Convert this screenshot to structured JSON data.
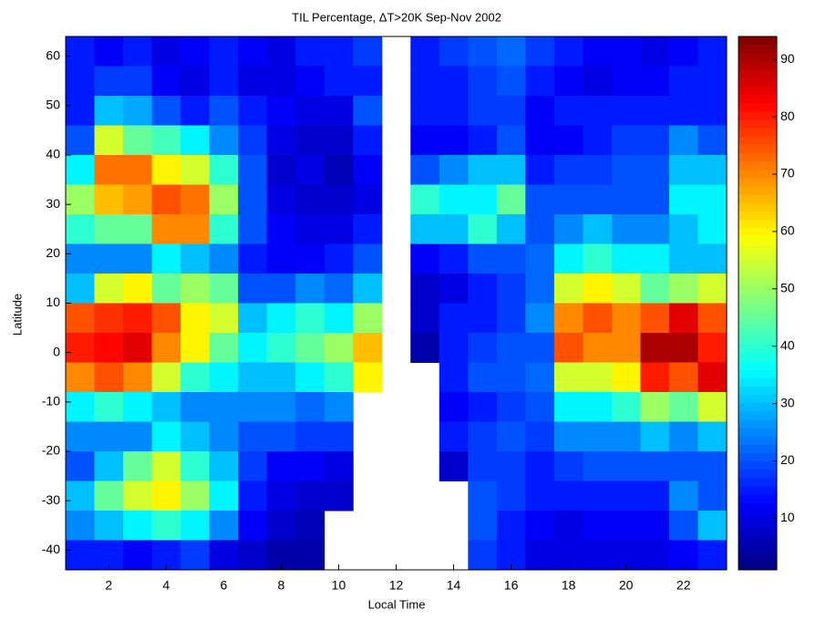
{
  "chart_data": {
    "type": "heatmap",
    "title": "TIL Percentage, ΔT>20K Sep-Nov 2002",
    "xlabel": "Local Time",
    "ylabel": "Latitude",
    "x": [
      1,
      2,
      3,
      4,
      5,
      6,
      7,
      8,
      9,
      10,
      11,
      12,
      13,
      14,
      15,
      16,
      17,
      18,
      19,
      20,
      21,
      22,
      23
    ],
    "y": [
      61,
      55,
      49,
      43,
      37,
      31,
      25,
      19,
      13,
      7,
      1,
      -5,
      -11,
      -17,
      -23,
      -29,
      -35,
      -41
    ],
    "z": [
      [
        15,
        12,
        15,
        10,
        12,
        15,
        12,
        10,
        15,
        15,
        18,
        null,
        15,
        18,
        20,
        22,
        18,
        15,
        12,
        12,
        10,
        12,
        15
      ],
      [
        15,
        18,
        18,
        12,
        10,
        15,
        10,
        10,
        12,
        15,
        15,
        null,
        15,
        15,
        18,
        20,
        15,
        12,
        10,
        12,
        12,
        15,
        15
      ],
      [
        15,
        30,
        28,
        20,
        15,
        20,
        15,
        12,
        10,
        10,
        20,
        null,
        15,
        15,
        18,
        18,
        12,
        15,
        15,
        15,
        15,
        15,
        15
      ],
      [
        20,
        55,
        45,
        42,
        35,
        25,
        18,
        10,
        8,
        8,
        15,
        null,
        12,
        12,
        15,
        20,
        12,
        12,
        15,
        18,
        18,
        25,
        20
      ],
      [
        35,
        72,
        72,
        60,
        55,
        40,
        20,
        8,
        10,
        6,
        12,
        null,
        20,
        25,
        30,
        30,
        15,
        18,
        18,
        20,
        20,
        30,
        30
      ],
      [
        50,
        65,
        68,
        75,
        72,
        50,
        20,
        10,
        8,
        8,
        10,
        null,
        40,
        35,
        35,
        45,
        20,
        20,
        20,
        20,
        20,
        35,
        35
      ],
      [
        40,
        45,
        45,
        70,
        70,
        40,
        20,
        12,
        10,
        10,
        15,
        null,
        30,
        30,
        40,
        30,
        20,
        25,
        30,
        25,
        25,
        30,
        35
      ],
      [
        25,
        25,
        25,
        35,
        30,
        25,
        15,
        12,
        12,
        15,
        20,
        null,
        12,
        15,
        20,
        20,
        22,
        35,
        40,
        35,
        35,
        30,
        30
      ],
      [
        30,
        55,
        60,
        45,
        50,
        45,
        20,
        20,
        25,
        22,
        30,
        null,
        8,
        10,
        15,
        18,
        22,
        55,
        60,
        55,
        45,
        50,
        55
      ],
      [
        75,
        78,
        80,
        75,
        60,
        55,
        30,
        35,
        40,
        35,
        50,
        null,
        8,
        15,
        15,
        18,
        25,
        70,
        75,
        70,
        75,
        85,
        75
      ],
      [
        80,
        82,
        85,
        70,
        60,
        45,
        35,
        40,
        45,
        50,
        65,
        null,
        5,
        15,
        18,
        20,
        20,
        75,
        70,
        70,
        90,
        90,
        80
      ],
      [
        70,
        75,
        70,
        55,
        40,
        35,
        30,
        30,
        35,
        40,
        60,
        null,
        null,
        15,
        20,
        20,
        22,
        55,
        55,
        60,
        80,
        75,
        85
      ],
      [
        35,
        40,
        35,
        30,
        25,
        25,
        25,
        25,
        22,
        25,
        null,
        null,
        null,
        12,
        15,
        18,
        20,
        35,
        35,
        40,
        50,
        45,
        55
      ],
      [
        25,
        25,
        25,
        35,
        30,
        25,
        20,
        20,
        18,
        18,
        null,
        null,
        null,
        15,
        18,
        20,
        18,
        25,
        25,
        25,
        30,
        25,
        30
      ],
      [
        20,
        30,
        45,
        55,
        40,
        30,
        18,
        12,
        12,
        10,
        null,
        null,
        null,
        8,
        18,
        18,
        15,
        18,
        20,
        20,
        20,
        20,
        20
      ],
      [
        30,
        45,
        55,
        60,
        50,
        35,
        15,
        10,
        8,
        8,
        null,
        null,
        null,
        null,
        20,
        18,
        15,
        15,
        15,
        15,
        15,
        25,
        20
      ],
      [
        25,
        30,
        35,
        40,
        35,
        25,
        12,
        8,
        6,
        null,
        null,
        null,
        null,
        null,
        20,
        15,
        12,
        10,
        12,
        12,
        12,
        20,
        30
      ],
      [
        15,
        15,
        12,
        15,
        18,
        10,
        8,
        5,
        5,
        null,
        null,
        null,
        null,
        null,
        18,
        15,
        10,
        10,
        10,
        10,
        10,
        12,
        15
      ]
    ],
    "xlim": [
      0.5,
      23.5
    ],
    "ylim": [
      -44,
      64
    ],
    "xticks": [
      2,
      4,
      6,
      8,
      10,
      12,
      14,
      16,
      18,
      20,
      22
    ],
    "yticks": [
      -40,
      -30,
      -20,
      -10,
      0,
      10,
      20,
      30,
      40,
      50,
      60
    ],
    "colormap": "jet",
    "clim": [
      1,
      94
    ],
    "cticks": [
      10,
      20,
      30,
      40,
      50,
      60,
      70,
      80,
      90
    ]
  }
}
